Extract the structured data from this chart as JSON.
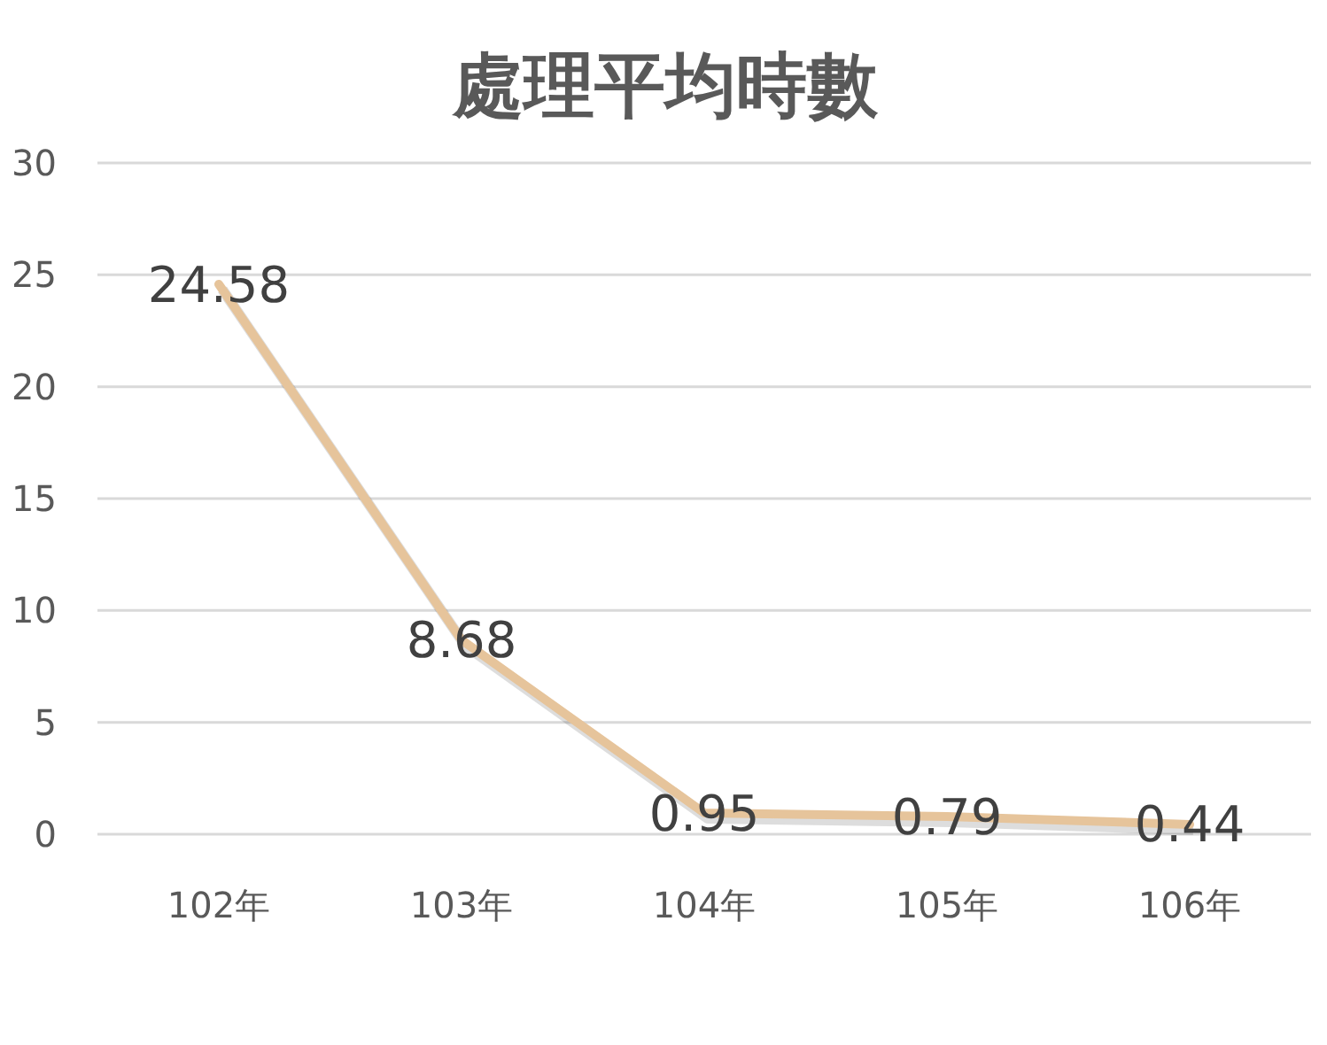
{
  "chart_data": {
    "type": "line",
    "title": "處理平均時數",
    "categories": [
      "102年",
      "103年",
      "104年",
      "105年",
      "106年"
    ],
    "series": [
      {
        "color": "#e6c49b",
        "values": [
          24.58,
          8.68,
          0.95,
          0.79,
          0.44
        ]
      }
    ],
    "ylim": [
      0,
      30
    ],
    "yticks": [
      0,
      5,
      10,
      15,
      20,
      25,
      30
    ],
    "grid": "y",
    "data_labels": true,
    "marker": "none",
    "line_style": "solid"
  }
}
